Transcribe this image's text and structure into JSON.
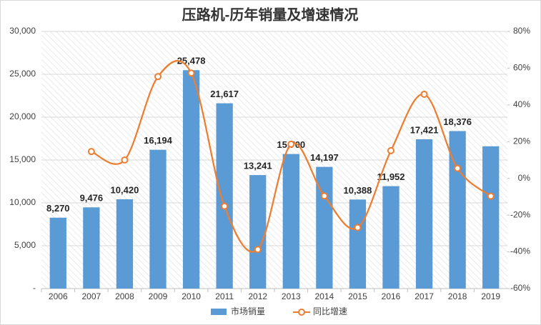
{
  "chart_data": {
    "type": "bar-line",
    "title": "压路机-历年销量及增速情况",
    "categories": [
      "2006",
      "2007",
      "2008",
      "2009",
      "2010",
      "2011",
      "2012",
      "2013",
      "2014",
      "2015",
      "2016",
      "2017",
      "2018",
      "2019"
    ],
    "series": [
      {
        "name": "市场销量",
        "type": "bar",
        "color": "#5b9bd5",
        "values": [
          8270,
          9476,
          10420,
          16194,
          25478,
          21617,
          13241,
          15700,
          14197,
          10388,
          11952,
          17421,
          18376,
          16600
        ],
        "value_labels": [
          "8,270",
          "9,476",
          "10,420",
          "16,194",
          "25,478",
          "21,617",
          "13,241",
          "15,700",
          "14,197",
          "10,388",
          "11,952",
          "17,421",
          "18,376",
          null
        ]
      },
      {
        "name": "同比增速",
        "type": "line",
        "axis": "y2",
        "color": "#ed7d31",
        "values": [
          null,
          14.6,
          10.0,
          55.4,
          57.3,
          -15.2,
          -38.7,
          18.6,
          -9.6,
          -26.8,
          15.1,
          45.8,
          5.5,
          -9.7
        ]
      }
    ],
    "ylim": [
      0,
      30000
    ],
    "yticks": [
      {
        "value": 0,
        "label": "-"
      },
      {
        "value": 5000,
        "label": "5,000"
      },
      {
        "value": 10000,
        "label": "10,000"
      },
      {
        "value": 15000,
        "label": "15,000"
      },
      {
        "value": 20000,
        "label": "20,000"
      },
      {
        "value": 25000,
        "label": "25,000"
      },
      {
        "value": 30000,
        "label": "30,000"
      }
    ],
    "y2lim": [
      -60,
      80
    ],
    "y2ticks": [
      {
        "value": -60,
        "label": "-60%"
      },
      {
        "value": -40,
        "label": "-40%"
      },
      {
        "value": -20,
        "label": "-20%"
      },
      {
        "value": 0,
        "label": "0%"
      },
      {
        "value": 20,
        "label": "20%"
      },
      {
        "value": 40,
        "label": "40%"
      },
      {
        "value": 60,
        "label": "60%"
      },
      {
        "value": 80,
        "label": "80%"
      }
    ],
    "grid": true,
    "legend": "bottom"
  }
}
